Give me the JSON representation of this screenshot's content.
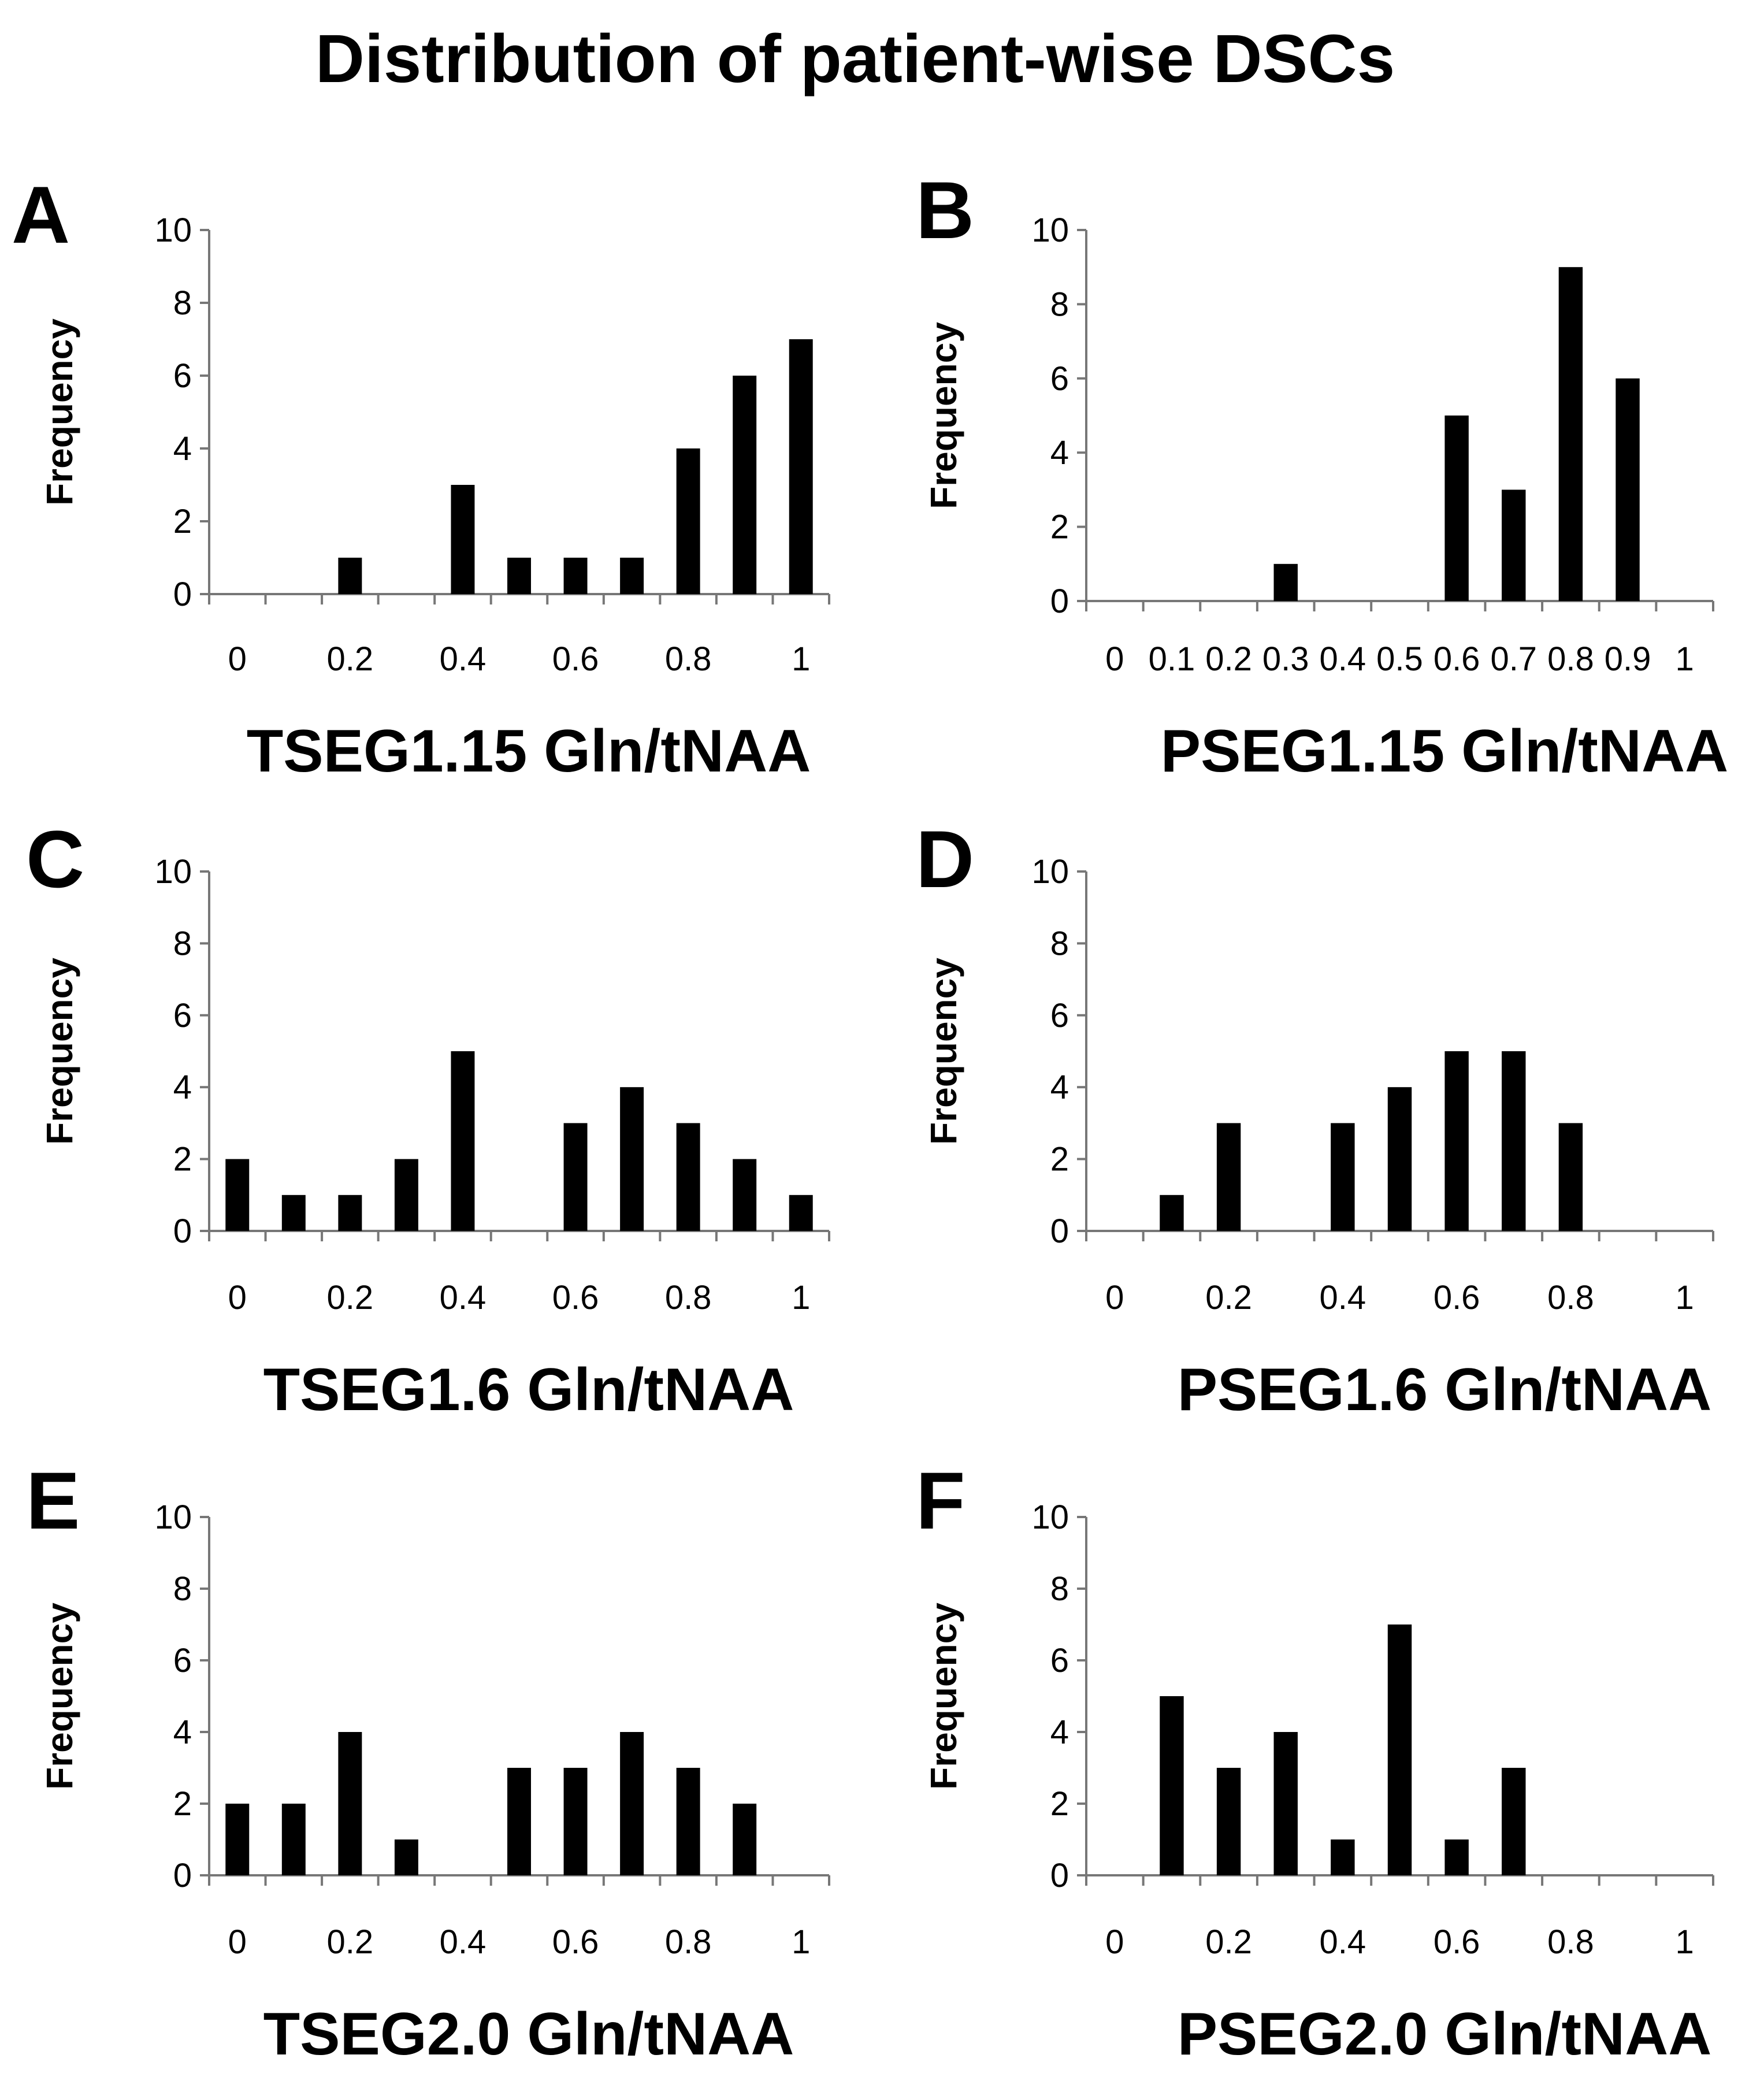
{
  "figure_title": "Distribution of patient-wise DSCs",
  "chart_data": [
    {
      "panel": "A",
      "type": "bar",
      "xlabel": "TSEG1.15 Gln/tNAA",
      "ylabel": "Frequency",
      "categories": [
        0,
        0.1,
        0.2,
        0.3,
        0.4,
        0.5,
        0.6,
        0.7,
        0.8,
        0.9,
        1
      ],
      "values": [
        0,
        0,
        1,
        0,
        3,
        1,
        1,
        1,
        4,
        6,
        7
      ],
      "xtick_labels": [
        "0",
        "",
        "0.2",
        "",
        "0.4",
        "",
        "0.6",
        "",
        "0.8",
        "",
        "1"
      ],
      "yticks": [
        0,
        2,
        4,
        6,
        8,
        10
      ],
      "ylim": [
        0,
        10
      ]
    },
    {
      "panel": "B",
      "type": "bar",
      "xlabel": "PSEG1.15 Gln/tNAA",
      "ylabel": "Frequency",
      "categories": [
        0,
        0.1,
        0.2,
        0.3,
        0.4,
        0.5,
        0.6,
        0.7,
        0.8,
        0.9,
        1
      ],
      "values": [
        0,
        0,
        0,
        1,
        0,
        0,
        5,
        3,
        9,
        6,
        0
      ],
      "xtick_labels": [
        "0",
        "0.1",
        "0.2",
        "0.3",
        "0.4",
        "0.5",
        "0.6",
        "0.7",
        "0.8",
        "0.9",
        "1"
      ],
      "yticks": [
        0,
        2,
        4,
        6,
        8,
        10
      ],
      "ylim": [
        0,
        10
      ]
    },
    {
      "panel": "C",
      "type": "bar",
      "xlabel": "TSEG1.6 Gln/tNAA",
      "ylabel": "Frequency",
      "categories": [
        0,
        0.1,
        0.2,
        0.3,
        0.4,
        0.5,
        0.6,
        0.7,
        0.8,
        0.9,
        1
      ],
      "values": [
        2,
        1,
        1,
        2,
        5,
        0,
        3,
        4,
        3,
        2,
        1
      ],
      "xtick_labels": [
        "0",
        "",
        "0.2",
        "",
        "0.4",
        "",
        "0.6",
        "",
        "0.8",
        "",
        "1"
      ],
      "yticks": [
        0,
        2,
        4,
        6,
        8,
        10
      ],
      "ylim": [
        0,
        10
      ]
    },
    {
      "panel": "D",
      "type": "bar",
      "xlabel": "PSEG1.6 Gln/tNAA",
      "ylabel": "Frequency",
      "categories": [
        0,
        0.1,
        0.2,
        0.3,
        0.4,
        0.5,
        0.6,
        0.7,
        0.8,
        0.9,
        1
      ],
      "values": [
        0,
        1,
        3,
        0,
        3,
        4,
        5,
        5,
        3,
        0,
        0
      ],
      "xtick_labels": [
        "0",
        "",
        "0.2",
        "",
        "0.4",
        "",
        "0.6",
        "",
        "0.8",
        "",
        "1"
      ],
      "yticks": [
        0,
        2,
        4,
        6,
        8,
        10
      ],
      "ylim": [
        0,
        10
      ]
    },
    {
      "panel": "E",
      "type": "bar",
      "xlabel": "TSEG2.0 Gln/tNAA",
      "ylabel": "Frequency",
      "categories": [
        0,
        0.1,
        0.2,
        0.3,
        0.4,
        0.5,
        0.6,
        0.7,
        0.8,
        0.9,
        1
      ],
      "values": [
        2,
        2,
        4,
        1,
        0,
        3,
        3,
        4,
        3,
        2,
        0
      ],
      "xtick_labels": [
        "0",
        "",
        "0.2",
        "",
        "0.4",
        "",
        "0.6",
        "",
        "0.8",
        "",
        "1"
      ],
      "yticks": [
        0,
        2,
        4,
        6,
        8,
        10
      ],
      "ylim": [
        0,
        10
      ]
    },
    {
      "panel": "F",
      "type": "bar",
      "xlabel": "PSEG2.0 Gln/tNAA",
      "ylabel": "Frequency",
      "categories": [
        0,
        0.1,
        0.2,
        0.3,
        0.4,
        0.5,
        0.6,
        0.7,
        0.8,
        0.9,
        1
      ],
      "values": [
        0,
        5,
        3,
        4,
        1,
        7,
        1,
        3,
        0,
        0,
        0
      ],
      "xtick_labels": [
        "0",
        "",
        "0.2",
        "",
        "0.4",
        "",
        "0.6",
        "",
        "0.8",
        "",
        "1"
      ],
      "yticks": [
        0,
        2,
        4,
        6,
        8,
        10
      ],
      "ylim": [
        0,
        10
      ]
    }
  ]
}
